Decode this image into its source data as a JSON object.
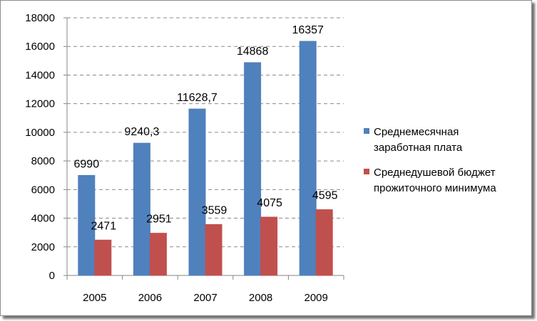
{
  "chart_data": {
    "type": "bar",
    "categories": [
      "2005",
      "2006",
      "2007",
      "2008",
      "2009"
    ],
    "series": [
      {
        "name": "Среднемесячная заработная плата",
        "name_lines": [
          "Среднемесячная",
          "заработная плата"
        ],
        "values": [
          6990,
          9240.3,
          11628.7,
          14868,
          16357
        ],
        "labels": [
          "6990",
          "9240,3",
          "11628,7",
          "14868",
          "16357"
        ],
        "color": "#4f81bd"
      },
      {
        "name": "Среднедушевой бюджет прожиточного минимума",
        "name_lines": [
          "Среднедушевой бюджет",
          "прожиточного минимума"
        ],
        "values": [
          2471,
          2951,
          3559,
          4075,
          4595
        ],
        "labels": [
          "2471",
          "2951",
          "3559",
          "4075",
          "4595"
        ],
        "color": "#c0504d"
      }
    ],
    "ylim": [
      0,
      18000
    ],
    "yticks": [
      0,
      2000,
      4000,
      6000,
      8000,
      10000,
      12000,
      14000,
      16000,
      18000
    ],
    "grid": true,
    "legend": "right"
  }
}
